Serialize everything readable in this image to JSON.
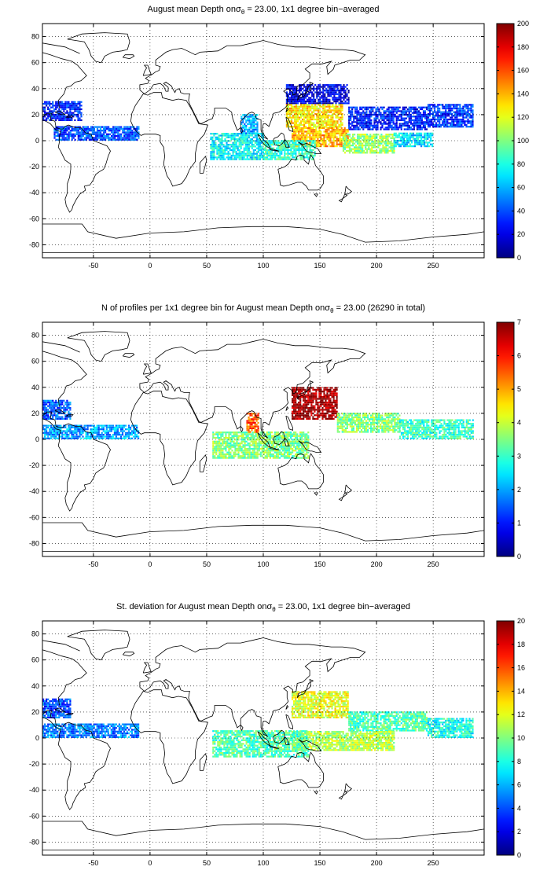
{
  "chart_data": [
    {
      "type": "heatmap",
      "title_pre": "August mean Depth on",
      "title_sigma": "σ",
      "title_sub": "θ",
      "title_post": " = 23.00, 1x1 degree bin−averaged",
      "xlim": [
        -95,
        295
      ],
      "ylim": [
        -90,
        90
      ],
      "xticks": [
        -50,
        0,
        50,
        100,
        150,
        200,
        250
      ],
      "yticks": [
        -80,
        -60,
        -40,
        -20,
        0,
        20,
        40,
        60,
        80
      ],
      "grid": true,
      "colorbar": {
        "range": [
          0,
          200
        ],
        "ticks": [
          0,
          20,
          40,
          60,
          80,
          100,
          120,
          140,
          160,
          180,
          200
        ],
        "colormap": "jet"
      },
      "regions": [
        {
          "lon": [
            120,
            175
          ],
          "lat": [
            28,
            43
          ],
          "value": 20
        },
        {
          "lon": [
            175,
            245
          ],
          "lat": [
            8,
            25
          ],
          "value": 30
        },
        {
          "lon": [
            245,
            285
          ],
          "lat": [
            10,
            28
          ],
          "value": 35
        },
        {
          "lon": [
            120,
            170
          ],
          "lat": [
            10,
            28
          ],
          "value": 130
        },
        {
          "lon": [
            125,
            175
          ],
          "lat": [
            -5,
            10
          ],
          "value": 140
        },
        {
          "lon": [
            170,
            215
          ],
          "lat": [
            -10,
            5
          ],
          "value": 105
        },
        {
          "lon": [
            215,
            250
          ],
          "lat": [
            -5,
            5
          ],
          "value": 70
        },
        {
          "lon": [
            53,
            100
          ],
          "lat": [
            -15,
            5
          ],
          "value": 75
        },
        {
          "lon": [
            100,
            145
          ],
          "lat": [
            -15,
            0
          ],
          "value": 85
        },
        {
          "lon": [
            80,
            95
          ],
          "lat": [
            5,
            20
          ],
          "value": 60
        },
        {
          "lon": [
            -85,
            -10
          ],
          "lat": [
            0,
            10
          ],
          "value": 40
        },
        {
          "lon": [
            -95,
            -60
          ],
          "lat": [
            15,
            30
          ],
          "value": 30
        }
      ]
    },
    {
      "type": "heatmap",
      "title_pre": "N of profiles per 1x1 degree bin for August mean Depth on",
      "title_sigma": "σ",
      "title_sub": "θ",
      "title_post": " = 23.00 (26290 in total)",
      "xlim": [
        -95,
        295
      ],
      "ylim": [
        -90,
        90
      ],
      "xticks": [
        -50,
        0,
        50,
        100,
        150,
        200,
        250
      ],
      "yticks": [
        -80,
        -60,
        -40,
        -20,
        0,
        20,
        40,
        60,
        80
      ],
      "grid": true,
      "colorbar": {
        "range": [
          0,
          7
        ],
        "ticks": [
          0,
          1,
          2,
          3,
          4,
          5,
          6,
          7
        ],
        "colormap": "jet"
      },
      "regions": [
        {
          "lon": [
            125,
            165
          ],
          "lat": [
            15,
            40
          ],
          "value": 6.8
        },
        {
          "lon": [
            165,
            220
          ],
          "lat": [
            5,
            20
          ],
          "value": 3.5
        },
        {
          "lon": [
            220,
            285
          ],
          "lat": [
            0,
            15
          ],
          "value": 3.0
        },
        {
          "lon": [
            55,
            140
          ],
          "lat": [
            -15,
            5
          ],
          "value": 3.5
        },
        {
          "lon": [
            85,
            95
          ],
          "lat": [
            5,
            20
          ],
          "value": 5.5
        },
        {
          "lon": [
            -95,
            -10
          ],
          "lat": [
            0,
            10
          ],
          "value": 2.0
        },
        {
          "lon": [
            -95,
            -70
          ],
          "lat": [
            15,
            30
          ],
          "value": 1.5
        }
      ]
    },
    {
      "type": "heatmap",
      "title_pre": "St. deviation for August mean Depth on",
      "title_sigma": "σ",
      "title_sub": "θ",
      "title_post": " = 23.00, 1x1 degree bin−averaged",
      "xlim": [
        -95,
        295
      ],
      "ylim": [
        -90,
        90
      ],
      "xticks": [
        -50,
        0,
        50,
        100,
        150,
        200,
        250
      ],
      "yticks": [
        -80,
        -60,
        -40,
        -20,
        0,
        20,
        40,
        60,
        80
      ],
      "grid": true,
      "colorbar": {
        "range": [
          0,
          20
        ],
        "ticks": [
          0,
          2,
          4,
          6,
          8,
          10,
          12,
          14,
          16,
          18,
          20
        ],
        "colormap": "jet"
      },
      "regions": [
        {
          "lon": [
            125,
            175
          ],
          "lat": [
            15,
            35
          ],
          "value": 12
        },
        {
          "lon": [
            175,
            245
          ],
          "lat": [
            5,
            20
          ],
          "value": 9
        },
        {
          "lon": [
            245,
            285
          ],
          "lat": [
            0,
            15
          ],
          "value": 8
        },
        {
          "lon": [
            125,
            215
          ],
          "lat": [
            -10,
            5
          ],
          "value": 11
        },
        {
          "lon": [
            55,
            140
          ],
          "lat": [
            -15,
            5
          ],
          "value": 9
        },
        {
          "lon": [
            -95,
            -10
          ],
          "lat": [
            0,
            10
          ],
          "value": 5
        },
        {
          "lon": [
            -95,
            -70
          ],
          "lat": [
            15,
            30
          ],
          "value": 4
        }
      ]
    }
  ]
}
